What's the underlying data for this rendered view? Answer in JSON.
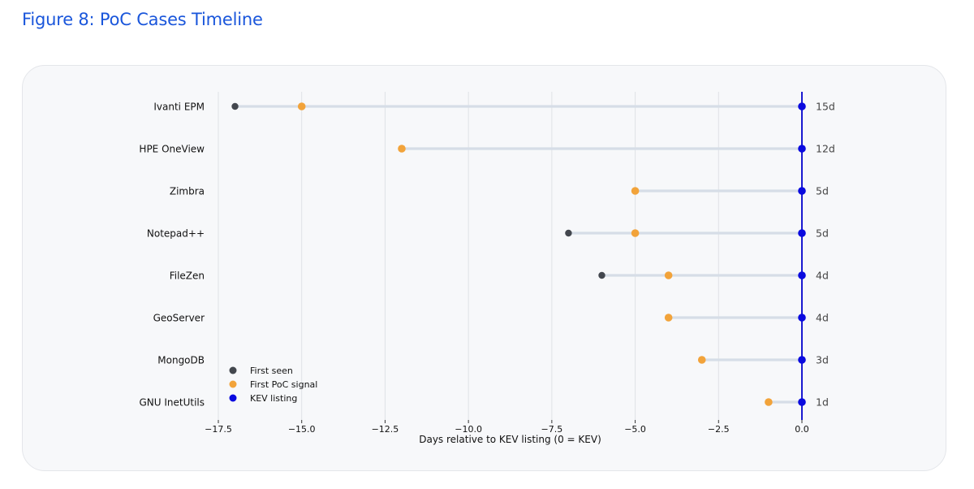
{
  "figure": {
    "title": "Figure 8: PoC Cases Timeline"
  },
  "colors": {
    "first_seen": "#43474e",
    "first_poc": "#f2a33a",
    "kev": "#0a0adf",
    "connector": "#d6dde7",
    "kev_line": "#1a1ad0",
    "grid": "#dfe2e6"
  },
  "chart_data": {
    "type": "scatter",
    "title": "",
    "xlabel": "Days relative to KEV listing (0 = KEV)",
    "ylabel": "",
    "xlim": [
      -17.5,
      0
    ],
    "xticks": [
      -17.5,
      -15.0,
      -12.5,
      -10.0,
      -7.5,
      -5.0,
      -2.5,
      0.0
    ],
    "xtick_labels": [
      "−17.5",
      "−15.0",
      "−12.5",
      "−10.0",
      "−7.5",
      "−5.0",
      "−2.5",
      "0.0"
    ],
    "grid": "vertical",
    "legend_placement": "bottom-left",
    "categories": [
      "Ivanti EPM",
      "HPE OneView",
      "Zimbra",
      "Notepad++",
      "FileZen",
      "GeoServer",
      "MongoDB",
      "GNU InetUtils"
    ],
    "series": [
      {
        "name": "First seen",
        "values": [
          -17,
          null,
          null,
          -7,
          -6,
          null,
          null,
          null
        ]
      },
      {
        "name": "First PoC signal",
        "values": [
          -15,
          -12,
          -5,
          -5,
          -4,
          -4,
          -3,
          -1
        ]
      },
      {
        "name": "KEV listing",
        "values": [
          0,
          0,
          0,
          0,
          0,
          0,
          0,
          0
        ]
      }
    ],
    "annotations": [
      "15d",
      "12d",
      "5d",
      "5d",
      "4d",
      "4d",
      "3d",
      "1d"
    ]
  }
}
